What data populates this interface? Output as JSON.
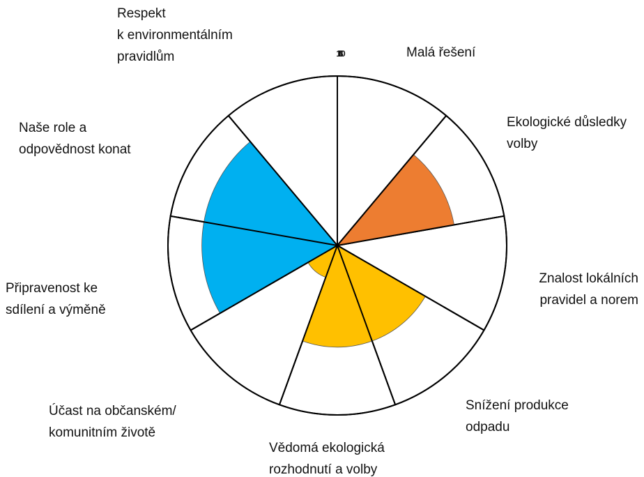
{
  "chart_data": {
    "type": "polar_area",
    "categories": [
      [
        "Malá řešení"
      ],
      [
        "Ekologické důsledky",
        "volby"
      ],
      [
        "Znalost lokálních",
        "pravidel a norem"
      ],
      [
        "Snížení produkce",
        "odpadu"
      ],
      [
        "Vědomá ekologická",
        "rozhodnutí a volby"
      ],
      [
        "Účast na občanském/",
        "komunitním životě"
      ],
      [
        "Připravenost ke",
        "sdílení a výměně"
      ],
      [
        "Naše role a",
        "odpovědnost konat"
      ],
      [
        "Respekt",
        "k environmentálním",
        "pravidlům"
      ]
    ],
    "values": [
      0,
      7,
      0,
      6,
      6,
      2,
      8,
      8,
      0
    ],
    "colors": [
      "#ed7d31",
      "#ed7d31",
      "#ffc000",
      "#ffc000",
      "#ffc000",
      "#ffc000",
      "#00b0f0",
      "#00b0f0",
      "#00b0f0"
    ],
    "rlim": [
      0,
      10
    ],
    "rticks": [
      4,
      5,
      8,
      10
    ]
  }
}
